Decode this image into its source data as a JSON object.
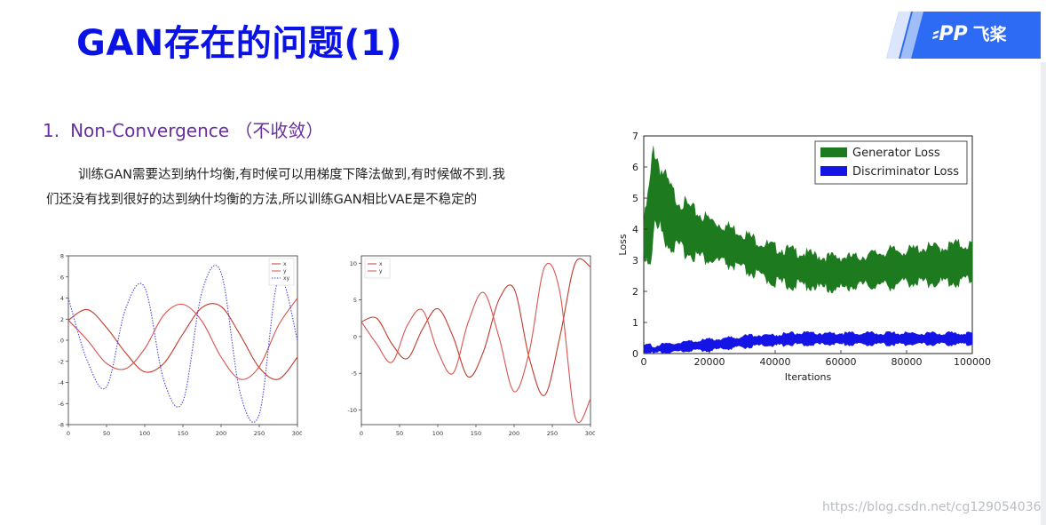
{
  "slide": {
    "title": "GAN存在的问题(1)"
  },
  "logo": {
    "text": "飞桨"
  },
  "section": {
    "number": "1.",
    "heading": "Non-Convergence （不收敛）"
  },
  "body": {
    "line1": "训练GAN需要达到纳什均衡,有时候可以用梯度下降法做到,有时候做不到.我",
    "line2": "们还没有找到很好的达到纳什均衡的方法,所以训练GAN相比VAE是不稳定的"
  },
  "watermark": "https://blog.csdn.net/cg129054036",
  "colors": {
    "title": "#0a12e6",
    "heading": "#6a2fa0",
    "series_x": "#c0392b",
    "series_y": "#d9534f",
    "series_xy": "#4a4adb",
    "generator": "#1e7a1e",
    "discriminator": "#1414e6"
  },
  "chart_data": [
    {
      "type": "line",
      "x": [
        0,
        25,
        50,
        75,
        100,
        125,
        150,
        175,
        200,
        225,
        250,
        275,
        300
      ],
      "series": [
        {
          "name": "x",
          "values": [
            1.9,
            2.9,
            1.2,
            -1.2,
            -3.0,
            -2.2,
            0.6,
            3.1,
            3.2,
            0.5,
            -2.6,
            -3.7,
            -1.6
          ]
        },
        {
          "name": "y",
          "values": [
            1.9,
            0.0,
            -2.2,
            -2.7,
            -0.8,
            2.4,
            3.4,
            1.8,
            -1.6,
            -3.7,
            -2.5,
            1.4,
            4.0
          ]
        },
        {
          "name": "xy",
          "values": [
            4.0,
            -2.0,
            -4.4,
            3.0,
            5.0,
            -3.8,
            -5.8,
            4.6,
            6.4,
            -5.0,
            -7.0,
            5.8,
            0.0
          ]
        }
      ],
      "legend": "top-right",
      "xlim": [
        0,
        300
      ],
      "ylim": [
        -8,
        8
      ],
      "xticks": [
        0,
        50,
        100,
        150,
        200,
        250,
        300
      ],
      "yticks": [
        8,
        6,
        4,
        2,
        0,
        -2,
        -4,
        -6,
        -8
      ]
    },
    {
      "type": "line",
      "x": [
        0,
        20,
        40,
        60,
        80,
        100,
        120,
        140,
        160,
        180,
        200,
        220,
        240,
        260,
        280,
        300
      ],
      "series": [
        {
          "name": "x",
          "values": [
            2.0,
            2.5,
            -1.0,
            -3.0,
            1.0,
            3.8,
            0.0,
            -5.5,
            -2.0,
            5.0,
            6.5,
            -3.0,
            -8.0,
            0.0,
            10.0,
            9.5
          ]
        },
        {
          "name": "y",
          "values": [
            2.0,
            -1.0,
            -3.5,
            1.5,
            3.6,
            -2.0,
            -5.0,
            2.0,
            6.0,
            0.0,
            -7.5,
            -2.0,
            9.5,
            6.0,
            -11.0,
            -8.5
          ]
        }
      ],
      "legend": "top-left",
      "xlim": [
        0,
        300
      ],
      "ylim": [
        -12,
        11
      ],
      "xticks": [
        0,
        50,
        100,
        150,
        200,
        250,
        300
      ],
      "yticks": [
        10,
        5,
        0,
        -5,
        -10
      ]
    },
    {
      "type": "area",
      "xlabel": "Iterations",
      "ylabel": "Loss",
      "x": [
        0,
        2000,
        3000,
        5000,
        8000,
        10000,
        15000,
        20000,
        25000,
        30000,
        35000,
        40000,
        45000,
        50000,
        55000,
        60000,
        65000,
        70000,
        75000,
        80000,
        85000,
        90000,
        95000,
        100000
      ],
      "series": [
        {
          "name": "Generator Loss",
          "band_low": [
            3.2,
            3.0,
            4.0,
            4.0,
            3.5,
            3.4,
            3.2,
            3.0,
            2.9,
            2.7,
            2.5,
            2.3,
            2.2,
            2.2,
            2.1,
            2.1,
            2.2,
            2.2,
            2.2,
            2.3,
            2.3,
            2.3,
            2.3,
            2.4
          ],
          "band_high": [
            4.2,
            5.5,
            6.7,
            6.0,
            5.3,
            5.0,
            4.6,
            4.3,
            4.1,
            3.9,
            3.6,
            3.4,
            3.3,
            3.2,
            3.1,
            3.1,
            3.1,
            3.2,
            3.3,
            3.3,
            3.4,
            3.4,
            3.5,
            3.5
          ]
        },
        {
          "name": "Discriminator Loss",
          "band_low": [
            0.05,
            0.05,
            0.0,
            0.05,
            0.05,
            0.05,
            0.1,
            0.1,
            0.15,
            0.2,
            0.25,
            0.25,
            0.3,
            0.3,
            0.3,
            0.3,
            0.3,
            0.3,
            0.3,
            0.3,
            0.3,
            0.3,
            0.3,
            0.3
          ],
          "band_high": [
            0.25,
            0.3,
            0.2,
            0.3,
            0.3,
            0.35,
            0.4,
            0.45,
            0.5,
            0.55,
            0.6,
            0.6,
            0.65,
            0.65,
            0.65,
            0.65,
            0.65,
            0.65,
            0.65,
            0.65,
            0.65,
            0.65,
            0.65,
            0.65
          ]
        }
      ],
      "legend": "top-right",
      "xlim": [
        0,
        100000
      ],
      "ylim": [
        0,
        7
      ],
      "xticks": [
        "0",
        "20000",
        "40000",
        "60000",
        "80000",
        "100000"
      ],
      "yticks": [
        "7",
        "6",
        "5",
        "4",
        "3",
        "2",
        "1",
        "0"
      ]
    }
  ]
}
